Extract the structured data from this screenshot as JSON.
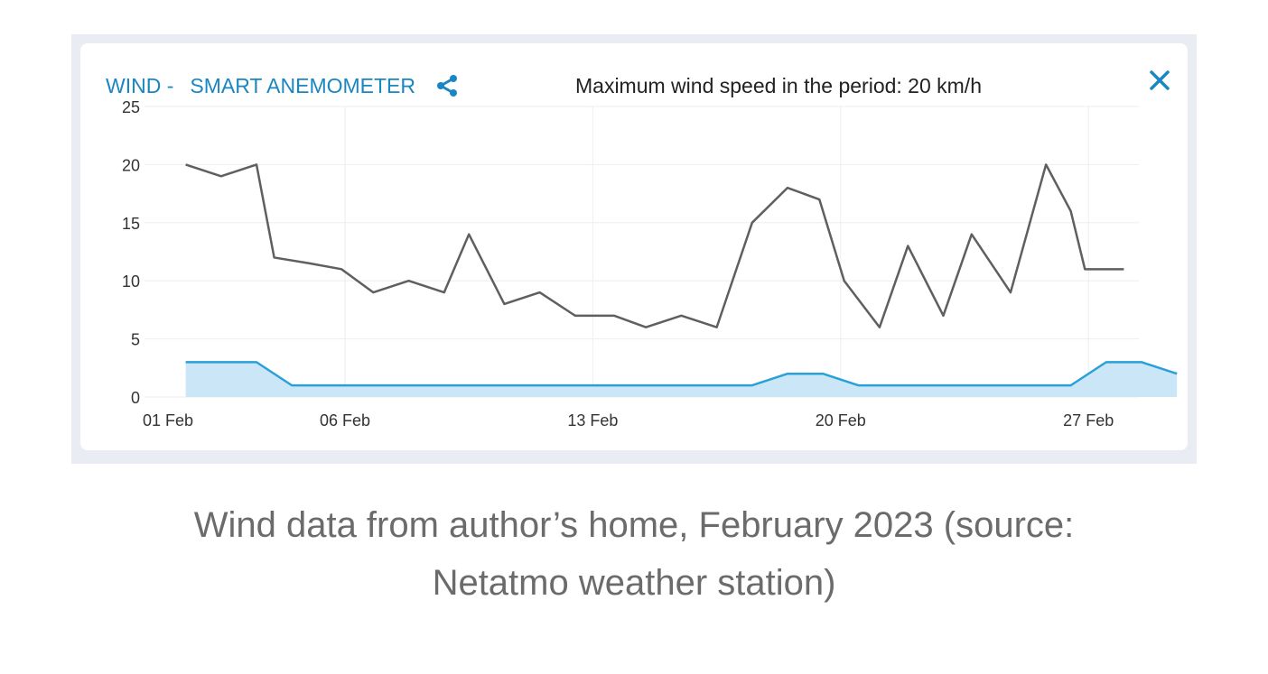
{
  "widget": {
    "title_prefix": "WIND -",
    "title_device": "SMART ANEMOMETER",
    "max_label": "Maximum wind speed in the period: 20 km/h",
    "share_icon": "share-icon",
    "close_icon": "close-icon"
  },
  "caption": {
    "line1": "Wind data from author’s home, February 2023 (source:",
    "line2": "Netatmo weather station)"
  },
  "colors": {
    "accent": "#1a86c2",
    "gust_line": "#5f5f5f",
    "avg_line": "#2aa0d8",
    "avg_fill": "#cbe7f7",
    "grid": "#eeeeee"
  },
  "chart_data": {
    "type": "line",
    "title": "",
    "xlabel": "",
    "ylabel": "",
    "ylim": [
      0,
      25
    ],
    "yticks": [
      0,
      5,
      10,
      15,
      20,
      25
    ],
    "xticks": [
      {
        "day": 1,
        "label": "01 Feb"
      },
      {
        "day": 6,
        "label": "06 Feb"
      },
      {
        "day": 13,
        "label": "13 Feb"
      },
      {
        "day": 20,
        "label": "20 Feb"
      },
      {
        "day": 27,
        "label": "27 Feb"
      }
    ],
    "grid": true,
    "series": [
      {
        "kind": "max",
        "x": [
          1.5,
          2.5,
          3.5,
          4,
          5,
          5.9,
          6.8,
          7.8,
          8.8,
          9.5,
          10.5,
          11.5,
          12.5,
          13.6,
          14.5,
          15.5,
          16.5,
          17.5,
          18.5,
          19.4,
          20.1,
          21.1,
          21.9,
          22.9,
          23.7,
          24.8,
          25.8,
          26.5,
          26.9,
          28
        ],
        "y": [
          20,
          19,
          20,
          12,
          11.5,
          11,
          9,
          10,
          9,
          14,
          8,
          9,
          7,
          7,
          6,
          7,
          6,
          15,
          18,
          17,
          10,
          6,
          13,
          7,
          14,
          9,
          20,
          16,
          11,
          11
        ]
      },
      {
        "kind": "average",
        "x": [
          1.5,
          3.5,
          4.5,
          17.5,
          18.5,
          19.5,
          20.5,
          26.5,
          27.5,
          28.5,
          29.5
        ],
        "y": [
          3,
          3,
          1,
          1,
          2,
          2,
          1,
          1,
          3,
          3,
          2
        ]
      }
    ]
  }
}
